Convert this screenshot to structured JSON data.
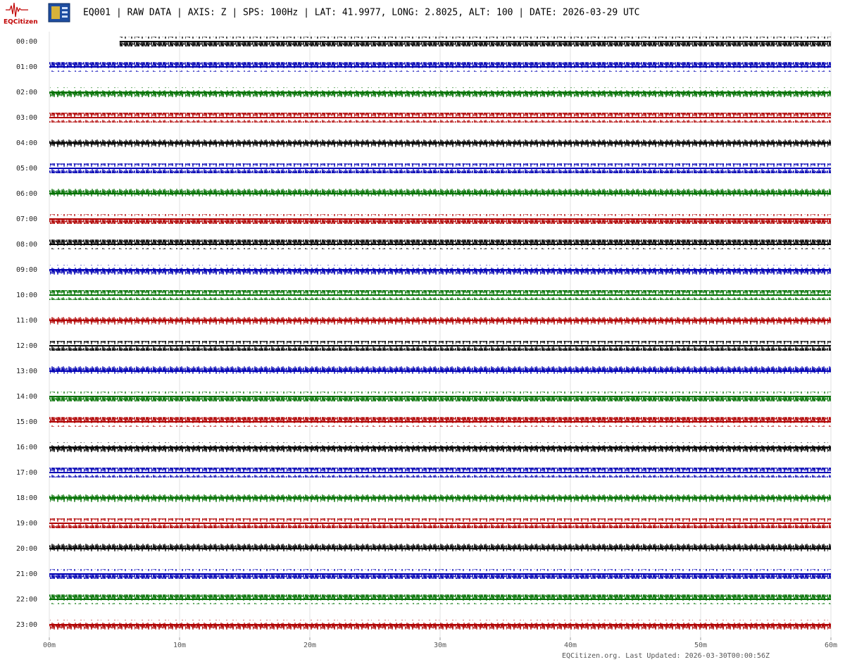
{
  "chart_data": {
    "type": "helicorder",
    "logo": "EQCitizen",
    "title": "EQ001 | RAW DATA | AXIS: Z | SPS: 100Hz | LAT: 41.9977, LONG: 2.8025, ALT: 100 | DATE: 2026-03-29 UTC",
    "footer": "EQCitizen.org. Last Updated: 2026-03-30T00:00:56Z",
    "categories": [
      "00:00",
      "01:00",
      "02:00",
      "03:00",
      "04:00",
      "05:00",
      "06:00",
      "07:00",
      "08:00",
      "09:00",
      "10:00",
      "11:00",
      "12:00",
      "13:00",
      "14:00",
      "15:00",
      "16:00",
      "17:00",
      "18:00",
      "19:00",
      "20:00",
      "21:00",
      "22:00",
      "23:00"
    ],
    "trace_start": [
      5.4,
      0,
      0,
      0,
      0,
      0,
      0,
      0,
      0,
      0,
      0,
      0,
      0,
      0,
      0,
      0,
      0,
      0,
      0,
      0,
      0,
      0,
      0,
      0
    ],
    "colors": [
      "#000000",
      "#0000b4",
      "#007000",
      "#b00000"
    ],
    "xlim": [
      0,
      60
    ],
    "xticks": [
      {
        "value": 0,
        "label": "00m"
      },
      {
        "value": 10,
        "label": "10m"
      },
      {
        "value": 20,
        "label": "20m"
      },
      {
        "value": 30,
        "label": "30m"
      },
      {
        "value": 40,
        "label": "40m"
      },
      {
        "value": 50,
        "label": "50m"
      },
      {
        "value": 60,
        "label": "60m"
      }
    ],
    "grid": true
  }
}
